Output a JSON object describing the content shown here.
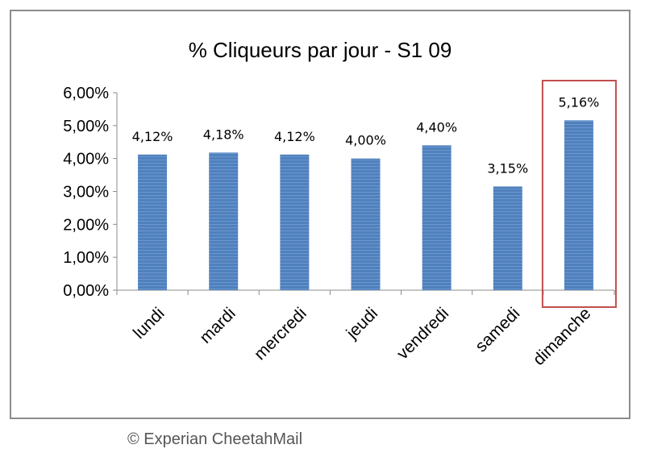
{
  "chart_data": {
    "type": "bar",
    "title": "% Cliqueurs par jour - S1 09",
    "categories": [
      "lundi",
      "mardi",
      "mercredi",
      "jeudi",
      "vendredi",
      "samedi",
      "dimanche"
    ],
    "values": [
      4.12,
      4.18,
      4.12,
      4.0,
      4.4,
      3.15,
      5.16
    ],
    "data_labels": [
      "4,12%",
      "4,18%",
      "4,12%",
      "4,00%",
      "4,40%",
      "3,15%",
      "5,16%"
    ],
    "y_ticks": [
      "0,00%",
      "1,00%",
      "2,00%",
      "3,00%",
      "4,00%",
      "5,00%",
      "6,00%"
    ],
    "ylim": [
      0,
      6
    ],
    "xlabel": "",
    "ylabel": "",
    "grid": false,
    "highlighted_category": "dimanche",
    "colors": {
      "bar": "#4f81bd",
      "bar_stripe": "#6d96cf",
      "highlight_box": "#c0504d",
      "axis": "#8c8c8c"
    }
  },
  "credit": "© Experian CheetahMail"
}
